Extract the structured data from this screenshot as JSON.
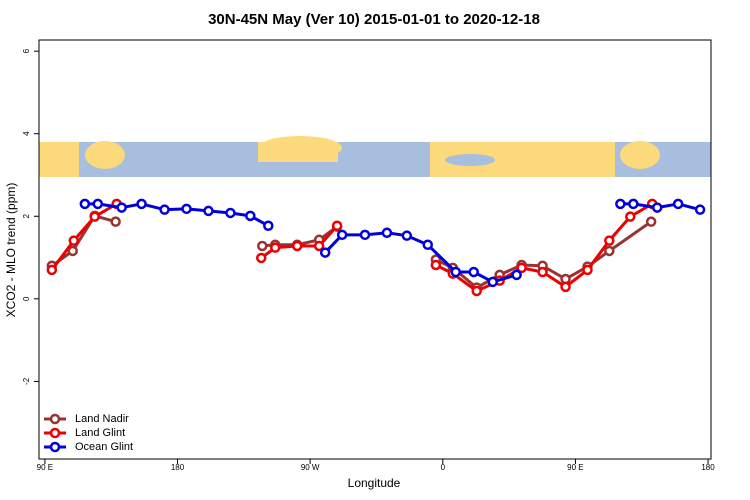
{
  "chart_data": {
    "type": "line",
    "title": "30N-45N May (Ver 10)   2015-01-01 to 2020-12-18",
    "x_label": "Longitude",
    "y_label": "XCO2 - MLO trend (ppm)",
    "xlim": [
      86,
      542
    ],
    "ylim": [
      -3.88,
      6.27
    ],
    "xticks": [
      {
        "value": 90,
        "label": "90 E"
      },
      180,
      {
        "value": 270,
        "label": "90 W"
      },
      {
        "value": 360,
        "label": "0"
      },
      {
        "value": 450,
        "label": "90 E"
      },
      {
        "value": 540,
        "label": "180"
      }
    ],
    "yticks": [
      -2,
      0,
      2,
      4,
      6
    ],
    "legend": "bottom-left",
    "series": [
      {
        "name": "Land Nadir",
        "color": "#993333",
        "x": [
          94.7,
          108.9,
          123.8,
          138,
          null,
          237.5,
          246.3,
          261.2,
          276.1,
          288.3,
          null,
          355.3,
          366.8,
          383.0,
          398.6,
          413.5,
          427.7,
          443.3,
          458.2,
          473.0,
          501.4
        ],
        "values": [
          0.8,
          1.16,
          2.01,
          1.87,
          null,
          1.28,
          1.31,
          1.31,
          1.43,
          1.75,
          null,
          0.95,
          0.75,
          0.27,
          0.58,
          0.82,
          0.8,
          0.48,
          0.78,
          1.16,
          1.87
        ]
      },
      {
        "name": "Land Glint",
        "color": "#ee0000",
        "x": [
          94.7,
          109.6,
          123.8,
          138.7,
          null,
          236.8,
          246.3,
          261.2,
          276.1,
          288.3,
          null,
          355.3,
          366.8,
          383.0,
          398.6,
          413.5,
          427.7,
          443.3,
          458.2,
          473.0,
          487.2,
          502.1
        ],
        "values": [
          0.7,
          1.41,
          1.99,
          2.3,
          null,
          0.99,
          1.24,
          1.28,
          1.28,
          1.77,
          null,
          0.82,
          0.61,
          0.19,
          0.44,
          0.75,
          0.65,
          0.29,
          0.7,
          1.41,
          1.99,
          2.3
        ]
      },
      {
        "name": "Ocean Glint",
        "color": "#0000dd",
        "x": [
          117.1,
          125.9,
          142.1,
          155.6,
          171.2,
          186.1,
          201,
          215.9,
          229.4,
          241.6,
          null,
          280.2,
          291.7,
          307.2,
          322.1,
          335.6,
          349.8,
          368.8,
          381,
          393.9,
          410.1,
          null,
          480.5,
          489.3,
          505.5,
          519.7,
          534.6
        ],
        "values": [
          2.3,
          2.3,
          2.21,
          2.3,
          2.16,
          2.18,
          2.13,
          2.08,
          2.01,
          1.77,
          null,
          1.12,
          1.55,
          1.55,
          1.6,
          1.53,
          1.31,
          0.65,
          0.65,
          0.41,
          0.58,
          null,
          2.3,
          2.3,
          2.21,
          2.3,
          2.16
        ]
      }
    ]
  }
}
